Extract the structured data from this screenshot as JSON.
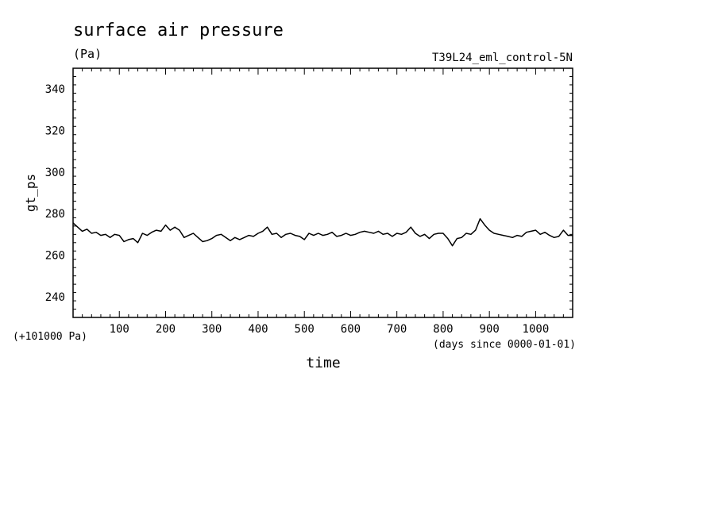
{
  "chart_data": {
    "type": "line",
    "title": "surface air pressure",
    "units": "(Pa)",
    "run_label": "T39L24_eml_control-5N",
    "xlabel": "time",
    "x_units": "(days since 0000-01-01)",
    "ylabel": "gt_ps",
    "y_offset_label": "(+101000 Pa)",
    "xlim": [
      0,
      1080
    ],
    "ylim": [
      230,
      350
    ],
    "x_ticks": [
      100,
      200,
      300,
      400,
      500,
      600,
      700,
      800,
      900,
      1000
    ],
    "x_tick_labels": [
      "100",
      "200",
      "300",
      "400",
      "500",
      "600",
      "700",
      "800",
      "900",
      "1000"
    ],
    "y_ticks": [
      240,
      260,
      280,
      300,
      320,
      340
    ],
    "y_tick_labels": [
      "240",
      "260",
      "280",
      "300",
      "320",
      "340"
    ],
    "grid": false,
    "line_color": "#000000",
    "series": [
      {
        "x": [
          0,
          10,
          20,
          30,
          40,
          50,
          60,
          70,
          80,
          90,
          100,
          110,
          120,
          130,
          140,
          150,
          160,
          170,
          180,
          190,
          200,
          210,
          220,
          230,
          240,
          250,
          260,
          270,
          280,
          290,
          300,
          310,
          320,
          330,
          340,
          350,
          360,
          370,
          380,
          390,
          400,
          410,
          420,
          430,
          440,
          450,
          460,
          470,
          480,
          490,
          500,
          510,
          520,
          530,
          540,
          550,
          560,
          570,
          580,
          590,
          600,
          610,
          620,
          630,
          640,
          650,
          660,
          670,
          680,
          690,
          700,
          710,
          720,
          730,
          740,
          750,
          760,
          770,
          780,
          790,
          800,
          810,
          820,
          830,
          840,
          850,
          860,
          870,
          880,
          890,
          900,
          910,
          920,
          930,
          940,
          950,
          960,
          970,
          980,
          990,
          1000,
          1010,
          1020,
          1030,
          1040,
          1050,
          1060,
          1070,
          1080
        ],
        "values": [
          275.5,
          273.5,
          271.5,
          272.5,
          270.5,
          271.0,
          269.5,
          270.0,
          268.5,
          270.0,
          269.5,
          266.5,
          267.5,
          268.0,
          266.0,
          270.5,
          269.5,
          271.0,
          272.0,
          271.5,
          274.5,
          272.0,
          273.5,
          272.0,
          268.5,
          269.5,
          270.5,
          268.5,
          266.5,
          267.0,
          268.0,
          269.5,
          270.0,
          268.5,
          267.0,
          268.5,
          267.5,
          268.5,
          269.5,
          269.0,
          270.5,
          271.5,
          273.5,
          270.0,
          270.5,
          268.5,
          270.0,
          270.5,
          269.5,
          269.0,
          267.5,
          270.5,
          269.5,
          270.5,
          269.5,
          270.0,
          271.0,
          269.0,
          269.5,
          270.5,
          269.5,
          270.0,
          271.0,
          271.5,
          271.0,
          270.5,
          271.5,
          270.0,
          270.5,
          269.0,
          270.5,
          270.0,
          271.0,
          273.5,
          270.5,
          269.0,
          270.0,
          268.0,
          270.0,
          270.5,
          270.5,
          268.0,
          264.5,
          268.0,
          268.5,
          270.5,
          270.0,
          272.0,
          277.5,
          274.5,
          272.0,
          270.5,
          270.0,
          269.5,
          269.0,
          268.5,
          269.5,
          269.0,
          271.0,
          271.5,
          272.0,
          270.0,
          271.0,
          269.5,
          268.5,
          269.0,
          272.0,
          269.5,
          269.5
        ]
      }
    ]
  }
}
